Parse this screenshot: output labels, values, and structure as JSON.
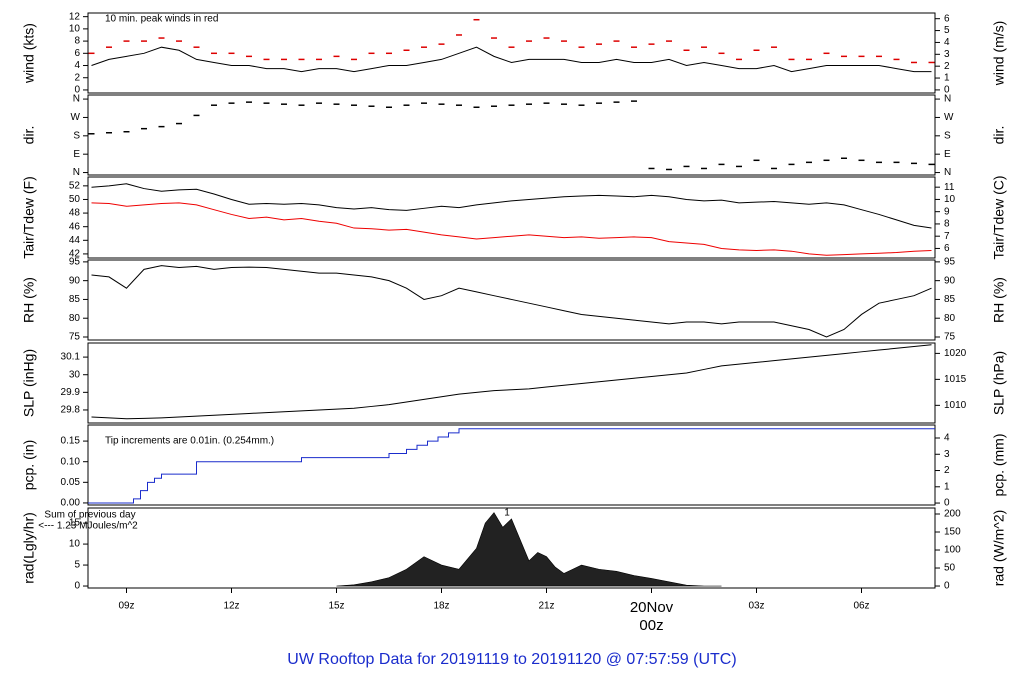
{
  "title": "UW Rooftop Data for 20191119  to  20191120 @ 07:57:59  (UTC)",
  "chart_data": [
    {
      "type": "line",
      "ylabel": "wind (kts)",
      "y2label": "wind (m/s)",
      "xlim": [
        7.9,
        32.1
      ],
      "ylim": [
        -0.5,
        12.6
      ],
      "yticks": [
        0,
        2,
        4,
        6,
        8,
        10,
        12
      ],
      "y2lim": [
        -0.26,
        6.48
      ],
      "y2ticks": [
        0,
        1,
        2,
        3,
        4,
        5,
        6
      ],
      "annotations": [
        {
          "text": "10 min. peak winds in red",
          "color": "#dd0000"
        }
      ],
      "x": [
        8,
        8.5,
        9,
        9.5,
        10,
        10.5,
        11,
        11.5,
        12,
        12.5,
        13,
        13.5,
        14,
        14.5,
        15,
        15.5,
        16,
        16.5,
        17,
        17.5,
        18,
        18.5,
        19,
        19.5,
        20,
        20.5,
        21,
        21.5,
        22,
        22.5,
        23,
        23.5,
        24,
        24.5,
        25,
        25.5,
        26,
        26.5,
        27,
        27.5,
        28,
        28.5,
        29,
        29.5,
        30,
        30.5,
        31,
        31.5,
        32
      ],
      "series": [
        {
          "color": "#000000",
          "style": "line",
          "values": [
            4,
            5,
            5.5,
            6,
            7,
            6.5,
            5,
            4.5,
            4,
            4,
            3.5,
            3.5,
            3,
            3.5,
            3.5,
            3,
            3.5,
            4,
            4,
            4.5,
            5,
            6,
            7,
            5.5,
            4.5,
            5,
            5,
            5,
            4.5,
            4.5,
            5,
            4.5,
            4.5,
            5,
            4,
            4.5,
            4,
            3.5,
            3.5,
            4,
            3,
            3.5,
            4,
            4,
            4,
            4,
            3.5,
            3,
            3
          ]
        },
        {
          "color": "#dd0000",
          "style": "dash",
          "values": [
            6,
            7,
            8,
            8,
            8.5,
            8,
            7,
            6,
            6,
            5.5,
            5,
            5,
            5,
            5,
            5.5,
            5,
            6,
            6,
            6.5,
            7,
            7.5,
            9,
            11.5,
            8.5,
            7,
            8,
            8.5,
            8,
            7,
            7.5,
            8,
            7,
            7.5,
            8,
            6.5,
            7,
            6,
            5,
            6.5,
            7,
            5,
            5,
            6,
            5.5,
            5.5,
            5.5,
            5,
            4.5,
            4.5
          ]
        }
      ]
    },
    {
      "type": "line",
      "ylabel": "dir.",
      "y2label": "dir.",
      "xlim": [
        7.9,
        32.1
      ],
      "ylim": [
        -12,
        380
      ],
      "yticks": [
        {
          "value": 0,
          "label": "N"
        },
        {
          "value": 90,
          "label": "E"
        },
        {
          "value": 180,
          "label": "S"
        },
        {
          "value": 270,
          "label": "W"
        },
        {
          "value": 360,
          "label": "N"
        }
      ],
      "y2lim": [
        -12,
        380
      ],
      "y2ticks": [
        {
          "value": 0,
          "label": "N"
        },
        {
          "value": 90,
          "label": "E"
        },
        {
          "value": 180,
          "label": "S"
        },
        {
          "value": 270,
          "label": "W"
        },
        {
          "value": 360,
          "label": "N"
        }
      ],
      "x": [
        8,
        8.5,
        9,
        9.5,
        10,
        10.5,
        11,
        11.5,
        12,
        12.5,
        13,
        13.5,
        14,
        14.5,
        15,
        15.5,
        16,
        16.5,
        17,
        17.5,
        18,
        18.5,
        19,
        19.5,
        20,
        20.5,
        21,
        21.5,
        22,
        22.5,
        23,
        23.5,
        24,
        24.5,
        25,
        25.5,
        26,
        26.5,
        27,
        27.5,
        28,
        28.5,
        29,
        29.5,
        30,
        30.5,
        31,
        31.5,
        32
      ],
      "series": [
        {
          "color": "#000000",
          "style": "dash",
          "values": [
            190,
            195,
            200,
            215,
            225,
            240,
            280,
            330,
            340,
            345,
            340,
            335,
            330,
            340,
            335,
            330,
            325,
            320,
            330,
            340,
            335,
            330,
            320,
            325,
            330,
            335,
            340,
            335,
            330,
            340,
            345,
            350,
            20,
            15,
            30,
            20,
            40,
            30,
            60,
            20,
            40,
            50,
            60,
            70,
            60,
            50,
            50,
            45,
            40
          ]
        }
      ]
    },
    {
      "type": "line",
      "ylabel": "Tair/Tdew (F)",
      "y2label": "Tair/Tdew (C)",
      "xlim": [
        7.9,
        32.1
      ],
      "ylim": [
        41.4,
        53.3
      ],
      "yticks": [
        42,
        44,
        46,
        48,
        50,
        52
      ],
      "y2lim": [
        5.22,
        11.83
      ],
      "y2ticks": [
        6,
        7,
        8,
        9,
        10,
        11
      ],
      "x": [
        8,
        8.5,
        9,
        9.5,
        10,
        10.5,
        11,
        11.5,
        12,
        12.5,
        13,
        13.5,
        14,
        14.5,
        15,
        15.5,
        16,
        16.5,
        17,
        17.5,
        18,
        18.5,
        19,
        19.5,
        20,
        20.5,
        21,
        21.5,
        22,
        22.5,
        23,
        23.5,
        24,
        24.5,
        25,
        25.5,
        26,
        26.5,
        27,
        27.5,
        28,
        28.5,
        29,
        29.5,
        30,
        30.5,
        31,
        31.5,
        32
      ],
      "series": [
        {
          "color": "#000000",
          "style": "line",
          "values": [
            51.8,
            52,
            52.3,
            51.6,
            51.2,
            51.4,
            51.5,
            50.8,
            50,
            49.3,
            49.4,
            49.3,
            49.4,
            49.2,
            48.8,
            48.6,
            48.8,
            48.5,
            48.4,
            48.7,
            49,
            48.8,
            49.2,
            49.5,
            49.8,
            50,
            50.2,
            50.4,
            50.5,
            50.6,
            50.5,
            50.4,
            50.6,
            50.4,
            50,
            49.8,
            49.9,
            49.5,
            49.6,
            49.7,
            49.5,
            49.3,
            49.5,
            49.2,
            48.5,
            47.8,
            47,
            46.2,
            45.8
          ]
        },
        {
          "color": "#ee0000",
          "style": "line",
          "values": [
            49.5,
            49.4,
            49,
            49.2,
            49.4,
            49.5,
            49.2,
            48.5,
            47.8,
            47.2,
            47.4,
            47,
            47.2,
            46.8,
            46.5,
            45.8,
            45.7,
            45.5,
            45.6,
            45.2,
            44.8,
            44.5,
            44.2,
            44.4,
            44.6,
            44.8,
            44.6,
            44.4,
            44.5,
            44.3,
            44.4,
            44.5,
            44.4,
            43.8,
            43.6,
            43.4,
            42.8,
            42.6,
            42.5,
            42.6,
            42.4,
            42,
            41.8,
            41.9,
            42,
            42.1,
            42.2,
            42.4,
            42.5
          ]
        }
      ]
    },
    {
      "type": "line",
      "ylabel": "RH (%)",
      "y2label": "RH (%)",
      "xlim": [
        7.9,
        32.1
      ],
      "ylim": [
        74.2,
        95.5
      ],
      "yticks": [
        75,
        80,
        85,
        90,
        95
      ],
      "y2lim": [
        74.2,
        95.5
      ],
      "y2ticks": [
        75,
        80,
        85,
        90,
        95
      ],
      "x": [
        8,
        8.5,
        9,
        9.5,
        10,
        10.5,
        11,
        11.5,
        12,
        12.5,
        13,
        13.5,
        14,
        14.5,
        15,
        15.5,
        16,
        16.5,
        17,
        17.5,
        18,
        18.5,
        19,
        19.5,
        20,
        20.5,
        21,
        21.5,
        22,
        22.5,
        23,
        23.5,
        24,
        24.5,
        25,
        25.5,
        26,
        26.5,
        27,
        27.5,
        28,
        28.5,
        29,
        29.5,
        30,
        30.5,
        31,
        31.5,
        32
      ],
      "series": [
        {
          "color": "#000000",
          "style": "line",
          "values": [
            91.5,
            91,
            88,
            93,
            94,
            93.5,
            93.8,
            93,
            93.5,
            93.6,
            93.5,
            93,
            92.5,
            92,
            92,
            91.5,
            91,
            90,
            88,
            85,
            86,
            88,
            87,
            86,
            85,
            84,
            83,
            82,
            81,
            80.5,
            80,
            79.5,
            79,
            78.5,
            79,
            79,
            78.5,
            79,
            79,
            79,
            78,
            77,
            75,
            77,
            81,
            84,
            85,
            86,
            88
          ]
        }
      ]
    },
    {
      "type": "line",
      "ylabel": "SLP (inHg)",
      "y2label": "SLP (hPa)",
      "xlim": [
        7.9,
        32.1
      ],
      "ylim": [
        29.726,
        30.18
      ],
      "yticks": [
        29.8,
        29.9,
        30.0,
        30.1
      ],
      "y2lim": [
        1006.6,
        1022.0
      ],
      "y2ticks": [
        1010,
        1015,
        1020
      ],
      "x": [
        8,
        8.5,
        9,
        9.5,
        10,
        10.5,
        11,
        11.5,
        12,
        12.5,
        13,
        13.5,
        14,
        14.5,
        15,
        15.5,
        16,
        16.5,
        17,
        17.5,
        18,
        18.5,
        19,
        19.5,
        20,
        20.5,
        21,
        21.5,
        22,
        22.5,
        23,
        23.5,
        24,
        24.5,
        25,
        25.5,
        26,
        26.5,
        27,
        27.5,
        28,
        28.5,
        29,
        29.5,
        30,
        30.5,
        31,
        31.5,
        32
      ],
      "series": [
        {
          "color": "#000000",
          "style": "line",
          "values": [
            29.76,
            29.755,
            29.75,
            29.752,
            29.755,
            29.76,
            29.765,
            29.77,
            29.775,
            29.78,
            29.785,
            29.79,
            29.795,
            29.8,
            29.805,
            29.81,
            29.82,
            29.83,
            29.845,
            29.86,
            29.875,
            29.89,
            29.9,
            29.91,
            29.915,
            29.92,
            29.93,
            29.94,
            29.95,
            29.96,
            29.97,
            29.98,
            29.99,
            30.0,
            30.01,
            30.03,
            30.05,
            30.06,
            30.07,
            30.08,
            30.09,
            30.1,
            30.11,
            30.12,
            30.13,
            30.14,
            30.15,
            30.16,
            30.17
          ]
        }
      ]
    },
    {
      "type": "line",
      "ylabel": "pcp. (in)",
      "y2label": "pcp. (mm)",
      "xlim": [
        7.9,
        32.1
      ],
      "ylim": [
        -0.005,
        0.189
      ],
      "yticks": [
        {
          "value": 0,
          "label": "0.00"
        },
        0.05,
        {
          "value": 0.1,
          "label": "0.10"
        },
        0.15
      ],
      "y2lim": [
        -0.12,
        4.8
      ],
      "y2ticks": [
        0,
        1,
        2,
        3,
        4
      ],
      "annotations": [
        {
          "text": "Tip increments are 0.01in. (0.254mm.)",
          "color": "#1a2ccc"
        }
      ],
      "x": [
        7.9,
        9.2,
        9.4,
        9.6,
        9.8,
        10,
        11,
        14,
        16.5,
        17,
        17.3,
        17.6,
        17.9,
        18.2,
        18.5,
        32.1
      ],
      "series": [
        {
          "color": "#1a2ccc",
          "style": "step",
          "values": [
            0,
            0.01,
            0.03,
            0.05,
            0.06,
            0.07,
            0.1,
            0.11,
            0.12,
            0.13,
            0.14,
            0.15,
            0.16,
            0.17,
            0.18,
            0.18
          ]
        }
      ]
    },
    {
      "type": "line",
      "ylabel": "rad(Lgly/hr)",
      "y2label": "rad (W/m^2)",
      "xlim": [
        7.9,
        32.1
      ],
      "ylim": [
        -0.47,
        18.6
      ],
      "yticks": [
        0,
        5,
        10,
        15
      ],
      "y2lim": [
        -5.5,
        216.7
      ],
      "y2ticks": [
        0,
        50,
        100,
        150,
        200
      ],
      "annotations": [
        {
          "text": "Sum of previous day",
          "color": "#9933cc"
        },
        {
          "text": "<--- 1.23 MJoules/m^2",
          "color": "#9933cc"
        },
        {
          "text": "1",
          "color": "#9933cc"
        }
      ],
      "xticks": [
        {
          "value": 9,
          "label": "09z"
        },
        {
          "value": 12,
          "label": "12z"
        },
        {
          "value": 15,
          "label": "15z"
        },
        {
          "value": 18,
          "label": "18z"
        },
        {
          "value": 21,
          "label": "21z"
        },
        {
          "value": 24,
          "label": "00z",
          "color": "#dd0000"
        },
        {
          "value": 27,
          "label": "03z"
        },
        {
          "value": 30,
          "label": "06z"
        }
      ],
      "date_label": "20Nov",
      "x": [
        15,
        15.5,
        16,
        16.5,
        17,
        17.5,
        18,
        18.5,
        19,
        19.25,
        19.5,
        19.75,
        20,
        20.25,
        20.5,
        20.75,
        21,
        21.25,
        21.5,
        21.75,
        22,
        22.5,
        23,
        23.5,
        24,
        24.5,
        25,
        25.5,
        26
      ],
      "series": [
        {
          "color": "#222222",
          "style": "area",
          "values": [
            0,
            0.3,
            1,
            2,
            4,
            7,
            5,
            4,
            9,
            15,
            17.5,
            14,
            16,
            11,
            6,
            8,
            7,
            4.5,
            3,
            4,
            5,
            4,
            3.5,
            2.5,
            1.8,
            1,
            0.2,
            0,
            0
          ]
        }
      ]
    }
  ]
}
